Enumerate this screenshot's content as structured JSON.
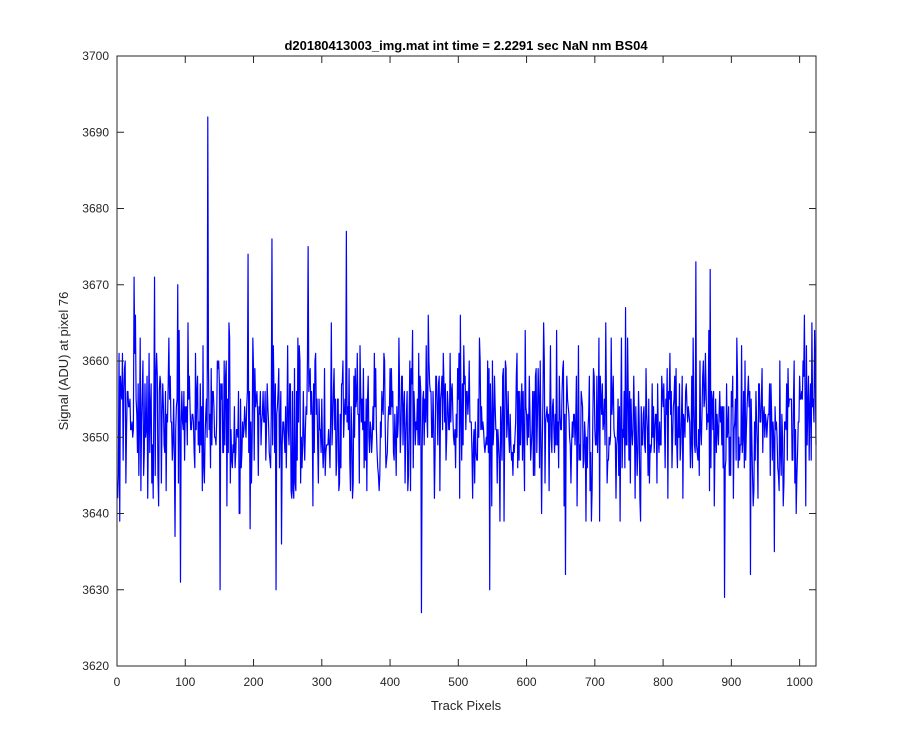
{
  "chart_data": {
    "type": "line",
    "title": "d20180413003_img.mat int time = 2.2291 sec  NaN nm BS04",
    "xlabel": "Track Pixels",
    "ylabel": "Signal (ADU) at pixel 76",
    "xlim": [
      0,
      1024
    ],
    "ylim": [
      3620,
      3700
    ],
    "xticks": [
      0,
      100,
      200,
      300,
      400,
      500,
      600,
      700,
      800,
      900,
      1000
    ],
    "yticks": [
      3620,
      3630,
      3640,
      3650,
      3660,
      3670,
      3680,
      3690,
      3700
    ],
    "grid": false,
    "legend": "none",
    "series_color": "#0000ff",
    "n_points": 1024,
    "mean": 3652,
    "spread": 5.5,
    "extremes": [
      {
        "x": 132,
        "y": 3692
      },
      {
        "x": 445,
        "y": 3627
      },
      {
        "x": 889,
        "y": 3629
      },
      {
        "x": 150,
        "y": 3630
      },
      {
        "x": 92,
        "y": 3631
      },
      {
        "x": 232,
        "y": 3630
      },
      {
        "x": 545,
        "y": 3630
      },
      {
        "x": 335,
        "y": 3677
      },
      {
        "x": 226,
        "y": 3676
      },
      {
        "x": 191,
        "y": 3674
      },
      {
        "x": 279,
        "y": 3675
      },
      {
        "x": 847,
        "y": 3673
      },
      {
        "x": 868,
        "y": 3672
      },
      {
        "x": 24,
        "y": 3671
      },
      {
        "x": 54,
        "y": 3671
      },
      {
        "x": 88,
        "y": 3670
      },
      {
        "x": 1017,
        "y": 3665
      },
      {
        "x": 1006,
        "y": 3666
      },
      {
        "x": 656,
        "y": 3632
      },
      {
        "x": 927,
        "y": 3632
      },
      {
        "x": 962,
        "y": 3635
      }
    ]
  }
}
